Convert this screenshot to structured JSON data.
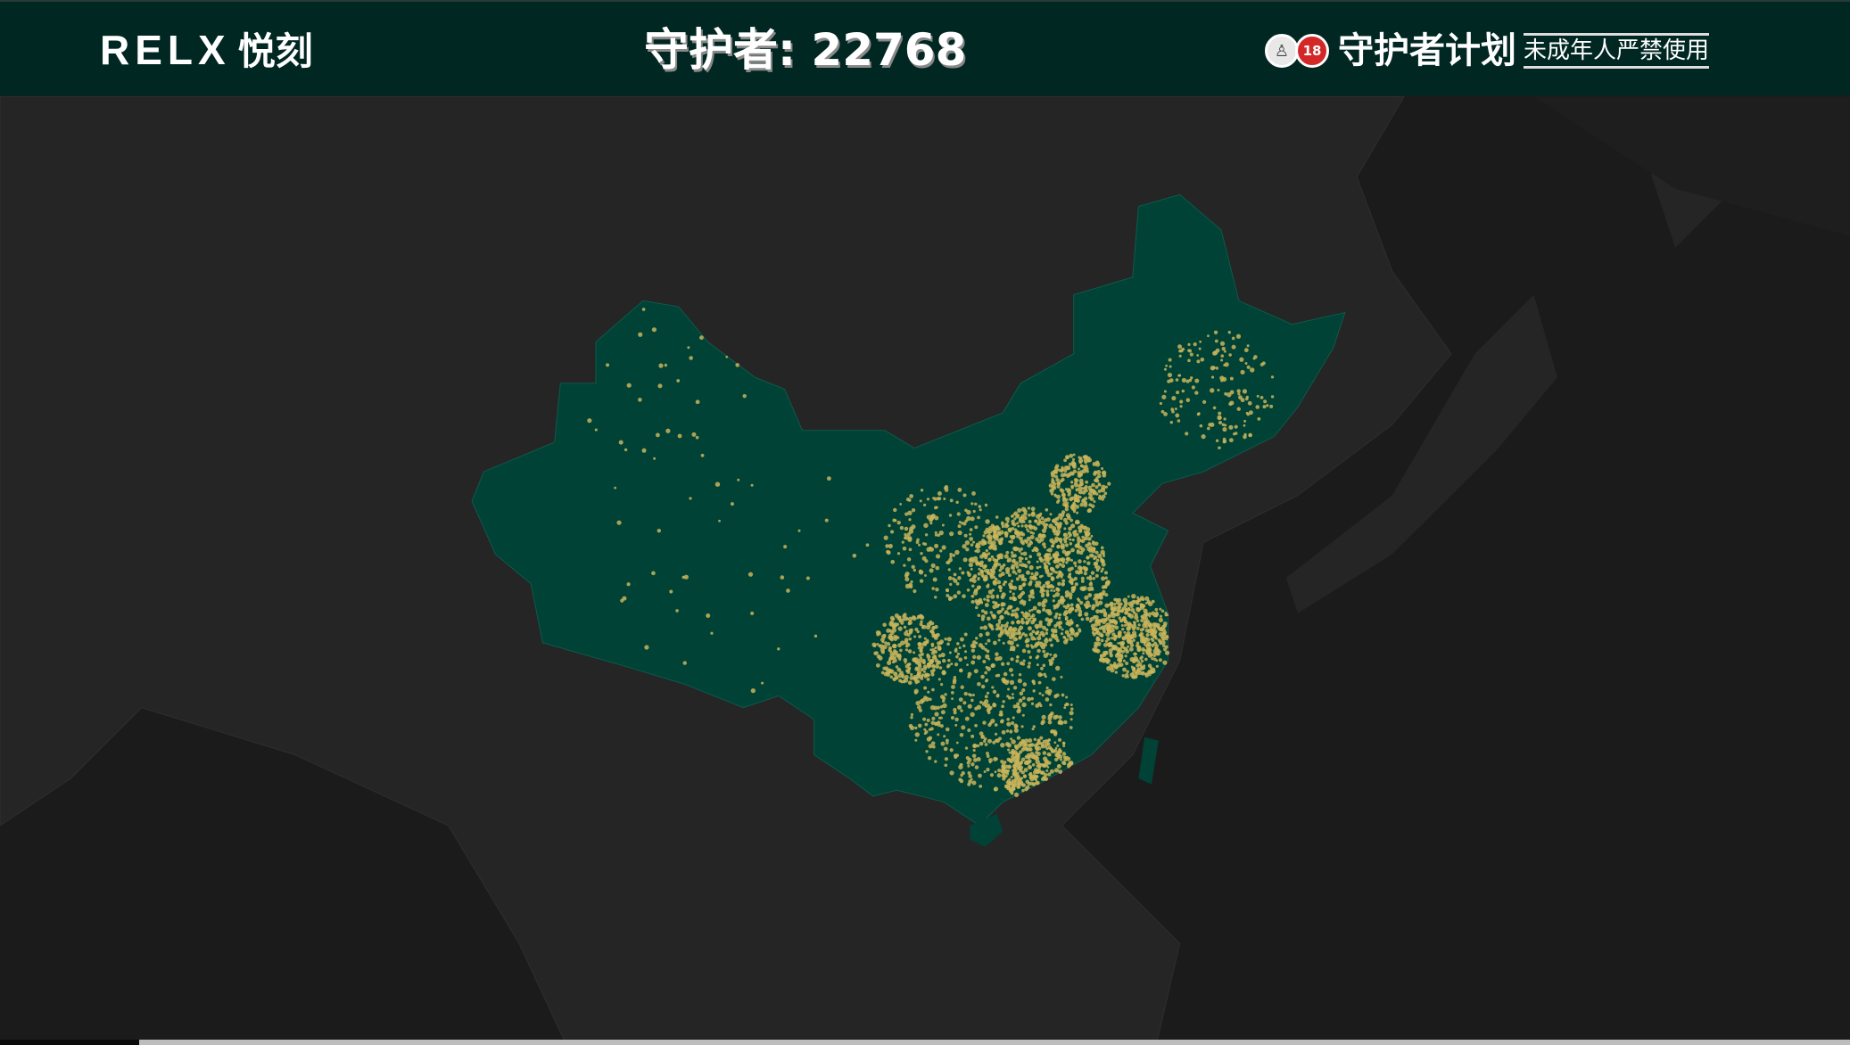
{
  "header": {
    "logo_text": "RELX",
    "logo_cn": "悦刻",
    "counter_label": "守护者:",
    "counter_value": "22768",
    "badge_18": "18",
    "plan_title": "守护者计划",
    "warning": "未成年人严禁使用"
  },
  "map": {
    "highlighted_region": "China",
    "colors": {
      "background": "#1b1b1b",
      "land": "#252525",
      "highlight": "#004236",
      "dots": "#c8b45a",
      "header": "#012723"
    },
    "icons": [
      "guardian-badge-icon",
      "no-under-18-icon"
    ]
  }
}
